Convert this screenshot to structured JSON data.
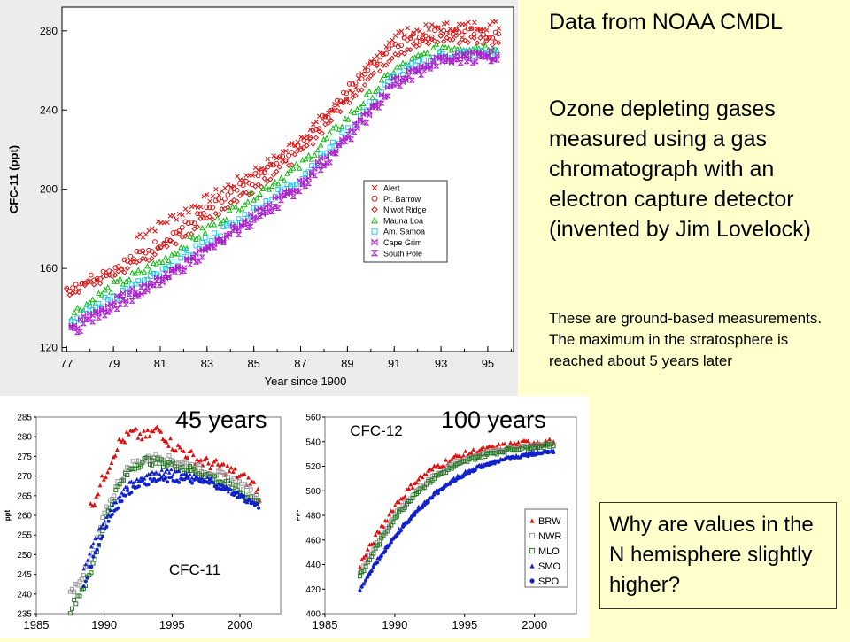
{
  "text": {
    "source": "Data from NOAA CMDL",
    "description": "Ozone depleting gases measured using a gas chromatograph with an electron capture detector (invented by Jim Lovelock)",
    "note": "These are ground-based measurements. The maximum in the stratosphere is reached about 5 years later",
    "overlay_left": "45 years",
    "overlay_right": "100 years",
    "question": "Why are values in the N hemisphere slightly higher?"
  },
  "colors": {
    "background": "#ffffcc",
    "red": "#dd1111",
    "green": "#11bb11",
    "cyan": "#22c8e8",
    "purple": "#aa22cc",
    "blue": "#1122cc",
    "darkgreen": "#2a7a2a",
    "gray": "#999999"
  },
  "chart_data": [
    {
      "type": "scatter",
      "title": "",
      "xlabel": "Year since 1900",
      "ylabel": "CFC-11 (ppt)",
      "xlim": [
        76.8,
        96.1
      ],
      "ylim": [
        118,
        292
      ],
      "xticks": [
        77,
        79,
        81,
        83,
        85,
        87,
        89,
        91,
        93,
        95
      ],
      "yticks": [
        120,
        160,
        200,
        240,
        280
      ],
      "legend_position": "right-center",
      "series": [
        {
          "name": "Alert",
          "marker": "x",
          "color": "#dd1111",
          "x": [
            80,
            83,
            86,
            89,
            91,
            93,
            95.5
          ],
          "y": [
            176,
            195,
            216,
            247,
            278,
            282,
            283
          ]
        },
        {
          "name": "Pt. Barrow",
          "marker": "o",
          "color": "#dd1111",
          "x": [
            77,
            79,
            81,
            83,
            85,
            87,
            89,
            91,
            93,
            95.5
          ],
          "y": [
            150,
            160,
            173,
            189,
            205,
            222,
            250,
            274,
            280,
            278
          ]
        },
        {
          "name": "Niwot Ridge",
          "marker": "diamond",
          "color": "#dd1111",
          "x": [
            77,
            79,
            81,
            83,
            85,
            87,
            89,
            91,
            93,
            95.5
          ],
          "y": [
            147,
            157,
            169,
            185,
            201,
            218,
            245,
            269,
            276,
            275
          ]
        },
        {
          "name": "Mauna Loa",
          "marker": "triangle",
          "color": "#11bb11",
          "x": [
            77.2,
            79,
            81,
            83,
            85,
            87,
            89,
            91,
            93,
            95.5
          ],
          "y": [
            137,
            151,
            163,
            180,
            197,
            212,
            236,
            260,
            272,
            272
          ]
        },
        {
          "name": "Am. Samoa",
          "marker": "square",
          "color": "#22c8e8",
          "x": [
            77.2,
            79,
            81,
            83,
            85,
            87,
            89,
            91,
            93,
            95.5
          ],
          "y": [
            133,
            146,
            157,
            174,
            189,
            206,
            229,
            257,
            268,
            269
          ]
        },
        {
          "name": "Cape Grim",
          "marker": "bowtie",
          "color": "#aa22cc",
          "x": [
            77.2,
            79,
            81,
            83,
            85,
            87,
            89,
            91,
            93,
            95.5
          ],
          "y": [
            130,
            143,
            154,
            171,
            186,
            203,
            227,
            254,
            266,
            268
          ]
        },
        {
          "name": "South Pole",
          "marker": "hourglass",
          "color": "#aa22cc",
          "x": [
            77.2,
            79,
            81,
            83,
            85,
            87,
            89,
            91,
            93,
            95.5
          ],
          "y": [
            128,
            141,
            153,
            169,
            184,
            201,
            225,
            252,
            265,
            267
          ]
        }
      ]
    },
    {
      "type": "scatter",
      "title": "CFC-11",
      "xlabel": "",
      "ylabel": "ppt",
      "xlim": [
        1985,
        2003
      ],
      "ylim": [
        235,
        285
      ],
      "xticks": [
        1985,
        1990,
        1995,
        2000
      ],
      "yticks": [
        235,
        240,
        245,
        250,
        255,
        260,
        265,
        270,
        275,
        280,
        285
      ],
      "series": [
        {
          "name": "BRW",
          "color": "#dd1111",
          "x": [
            1989,
            1990,
            1991,
            1992,
            1993,
            1994,
            1995,
            1997,
            1999,
            2001,
            2001.5
          ],
          "y": [
            262,
            270,
            278,
            281,
            280,
            282,
            278,
            274,
            272,
            268,
            265
          ]
        },
        {
          "name": "NWR",
          "color": "#999999",
          "x": [
            1987.5,
            1989,
            1990,
            1991,
            1992,
            1994,
            1996,
            1998,
            2000,
            2001.5
          ],
          "y": [
            240,
            248,
            260,
            268,
            273,
            275,
            273,
            271,
            268,
            264
          ]
        },
        {
          "name": "MLO",
          "color": "#2a7a2a",
          "x": [
            1987.5,
            1989,
            1990,
            1991,
            1992,
            1993,
            1995,
            1997,
            1999,
            2001.5
          ],
          "y": [
            236,
            245,
            258,
            267,
            272,
            274,
            273,
            271,
            268,
            263
          ]
        },
        {
          "name": "SMO",
          "color": "#1122cc",
          "x": [
            1988.5,
            1989.5,
            1990.5,
            1991.5,
            1992.5,
            1993.5,
            1995,
            1997,
            1999,
            2001.5
          ],
          "y": [
            247,
            255,
            262,
            267,
            269,
            271,
            271,
            270,
            267,
            262
          ]
        },
        {
          "name": "SPO",
          "color": "#1122cc",
          "x": [
            1988.5,
            1989.5,
            1990.5,
            1991.5,
            1992.5,
            1994,
            1996,
            1998,
            2000,
            2001.5
          ],
          "y": [
            242,
            252,
            260,
            265,
            268,
            269,
            269,
            268,
            265,
            262
          ]
        }
      ]
    },
    {
      "type": "scatter",
      "title": "CFC-12",
      "xlabel": "",
      "ylabel": "ppt",
      "xlim": [
        1985,
        2003
      ],
      "ylim": [
        400,
        560
      ],
      "xticks": [
        1985,
        1990,
        1995,
        2000
      ],
      "yticks": [
        400,
        420,
        440,
        460,
        480,
        500,
        520,
        540,
        560
      ],
      "legend_position": "right-bottom",
      "series": [
        {
          "name": "BRW",
          "color": "#dd1111",
          "x": [
            1987.5,
            1988.5,
            1990,
            1991.5,
            1993,
            1994.5,
            1996,
            1998,
            2000,
            2001.5
          ],
          "y": [
            440,
            460,
            488,
            508,
            520,
            528,
            533,
            537,
            540,
            540
          ]
        },
        {
          "name": "NWR",
          "color": "#999999",
          "x": [
            1987.5,
            1988.5,
            1990,
            1991.5,
            1993,
            1994.5,
            1996,
            1998,
            2000,
            2001.5
          ],
          "y": [
            432,
            452,
            480,
            500,
            514,
            523,
            529,
            534,
            537,
            538
          ]
        },
        {
          "name": "MLO",
          "color": "#2a7a2a",
          "x": [
            1987.5,
            1988.5,
            1990,
            1991.5,
            1993,
            1994.5,
            1996,
            1998,
            2000,
            2001.5
          ],
          "y": [
            430,
            450,
            478,
            498,
            512,
            521,
            528,
            533,
            536,
            537
          ]
        },
        {
          "name": "SMO",
          "color": "#1122cc",
          "x": [
            1987.5,
            1988.5,
            1990,
            1991.5,
            1993,
            1994.5,
            1996,
            1998,
            2000,
            2001.5
          ],
          "y": [
            420,
            440,
            464,
            484,
            500,
            512,
            520,
            527,
            531,
            533
          ]
        },
        {
          "name": "SPO",
          "color": "#1122cc",
          "x": [
            1987.5,
            1988.5,
            1990,
            1991.5,
            1993,
            1994.5,
            1996,
            1998,
            2000,
            2001.5
          ],
          "y": [
            418,
            438,
            462,
            482,
            498,
            510,
            519,
            526,
            530,
            532
          ]
        }
      ]
    }
  ]
}
